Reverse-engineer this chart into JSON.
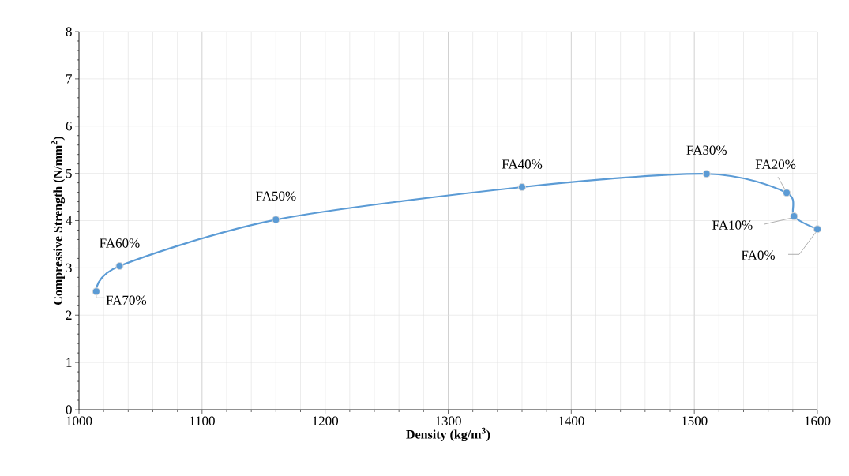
{
  "chart_data": {
    "type": "line",
    "xlabel": "Density (kg/m$^{3}$)",
    "ylabel": "Compressive Strength (N/mm$^{2}$)",
    "x": [
      1014,
      1033,
      1160,
      1360,
      1510,
      1575,
      1581,
      1600
    ],
    "values": [
      2.5,
      3.04,
      4.02,
      4.71,
      4.99,
      4.59,
      4.09,
      3.82
    ],
    "color": "#5b9bd5",
    "marker": "circle",
    "line_style": "solid",
    "grid": true,
    "xlim": [
      1000,
      1600
    ],
    "ylim": [
      0,
      8
    ],
    "xticks": [
      1000,
      1100,
      1200,
      1300,
      1400,
      1500,
      1600
    ],
    "yticks": [
      0,
      1,
      2,
      3,
      4,
      5,
      6,
      7,
      8
    ],
    "annotations": [
      {
        "text": "FA70%",
        "x": 1014,
        "y": 2.5
      },
      {
        "text": "FA60%",
        "x": 1033,
        "y": 3.04
      },
      {
        "text": "FA50%",
        "x": 1160,
        "y": 4.02
      },
      {
        "text": "FA40%",
        "x": 1360,
        "y": 4.71
      },
      {
        "text": "FA30%",
        "x": 1510,
        "y": 4.99
      },
      {
        "text": "FA20%",
        "x": 1575,
        "y": 4.59
      },
      {
        "text": "FA10%",
        "x": 1581,
        "y": 4.09
      },
      {
        "text": "FA0%",
        "x": 1600,
        "y": 3.82
      }
    ]
  }
}
